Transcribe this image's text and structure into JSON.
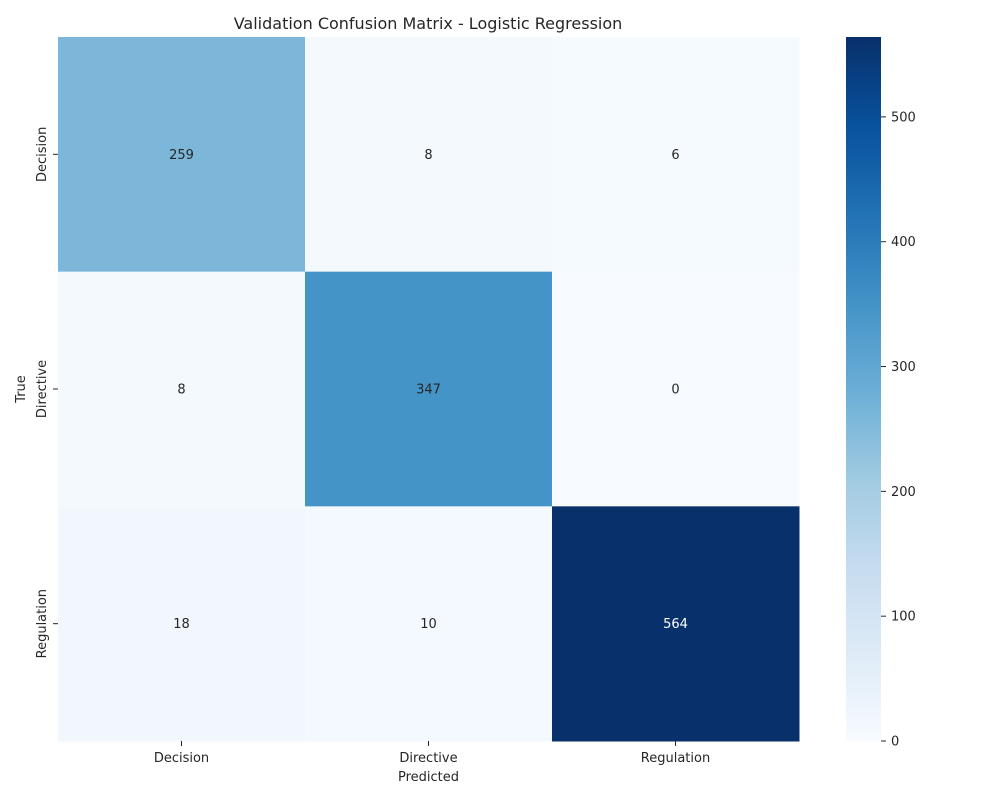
{
  "chart_data": {
    "type": "heatmap",
    "title": "Validation Confusion Matrix - Logistic Regression",
    "xlabel": "Predicted",
    "ylabel": "True",
    "x_categories": [
      "Decision",
      "Directive",
      "Regulation"
    ],
    "y_categories": [
      "Decision",
      "Directive",
      "Regulation"
    ],
    "values": [
      [
        259,
        8,
        6
      ],
      [
        8,
        347,
        0
      ],
      [
        18,
        10,
        564
      ]
    ],
    "colormap": "Blues",
    "colorbar": {
      "min": 0,
      "max": 564,
      "ticks": [
        0,
        100,
        200,
        300,
        400,
        500
      ]
    },
    "annotate": true,
    "grid": false
  }
}
